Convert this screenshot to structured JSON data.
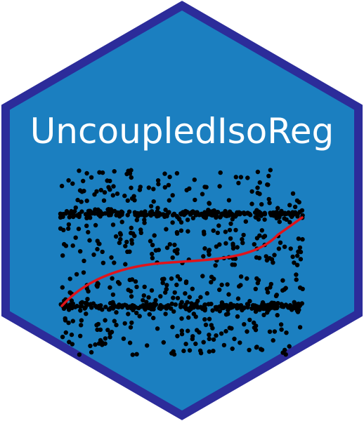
{
  "logo": {
    "title": "UncoupledIsoReg",
    "colors": {
      "hex_fill": "#1b7fc0",
      "hex_border": "#2c2c9a",
      "title_text": "#ffffff",
      "points": "#000000",
      "curve": "#e0141b",
      "background": "#ffffff"
    }
  }
}
